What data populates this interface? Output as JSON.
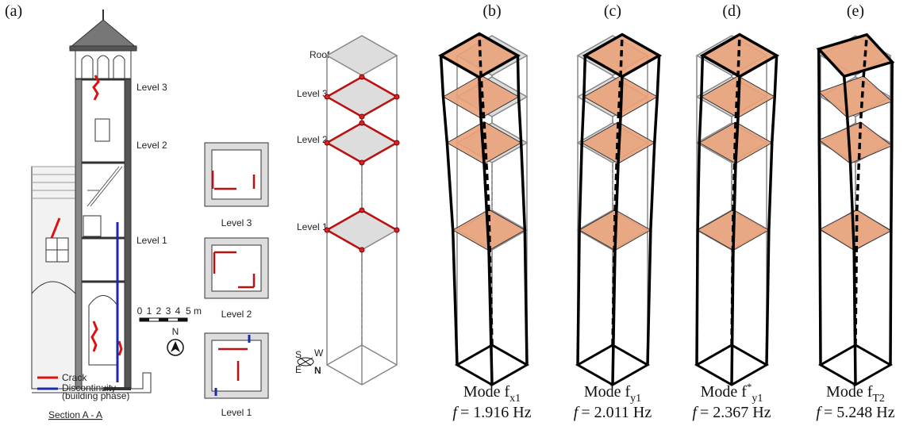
{
  "panel_a": {
    "label": "(a)",
    "section_levels": [
      "Level 3",
      "Level 2",
      "Level 1"
    ],
    "legend": {
      "crack": "Crack",
      "discontinuity": "Discontinuity",
      "discontinuity_note": "(building phase)"
    },
    "section_title": "Section A - A",
    "scale": [
      "0",
      "1",
      "2",
      "3",
      "4",
      "5 m"
    ],
    "north": "N",
    "plans": [
      "Level 3",
      "Level 2",
      "Level 1"
    ],
    "model_levels": [
      "Roof",
      "Level 3",
      "Level 2",
      "Level 1"
    ],
    "compass": {
      "s": "S",
      "w": "W",
      "e": "E",
      "n": "N"
    }
  },
  "modes": [
    {
      "label": "(b)",
      "name": "Mode f",
      "sub": "x1",
      "freq_symbol": "f",
      "freq": "= 1.916 Hz"
    },
    {
      "label": "(c)",
      "name": "Mode f",
      "sub": "y1",
      "freq_symbol": "f",
      "freq": "= 2.011 Hz"
    },
    {
      "label": "(d)",
      "name": "Mode f",
      "sup": "*",
      "sub": "y1",
      "freq_symbol": "f",
      "freq": "= 2.367 Hz"
    },
    {
      "label": "(e)",
      "name": "Mode f",
      "sub": "T2",
      "freq_symbol": "f",
      "freq": "= 5.248 Hz"
    }
  ]
}
